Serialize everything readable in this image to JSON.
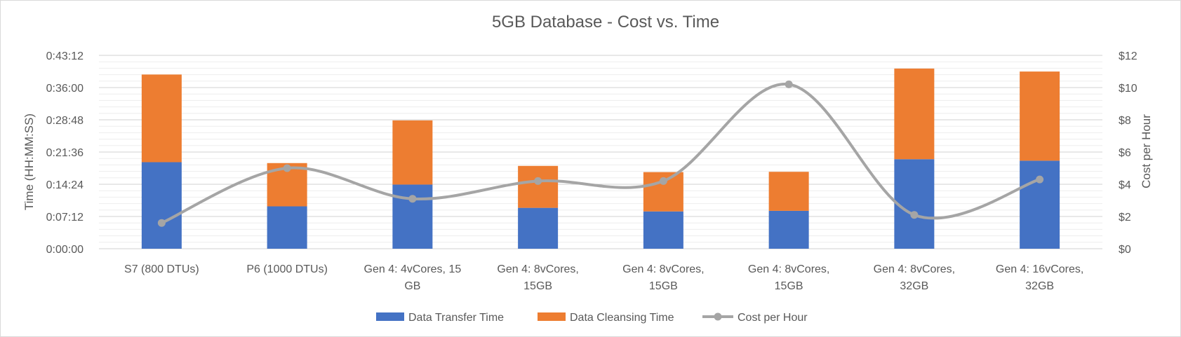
{
  "chart_data": {
    "type": "bar",
    "title": "5GB Database - Cost vs. Time",
    "categories": [
      [
        "S7 (800 DTUs)"
      ],
      [
        "P6 (1000 DTUs)"
      ],
      [
        "Gen 4: 4vCores, 15",
        "GB"
      ],
      [
        "Gen 4: 8vCores,",
        "15GB"
      ],
      [
        "Gen 4: 8vCores,",
        "15GB"
      ],
      [
        "Gen 4: 8vCores,",
        "15GB"
      ],
      [
        "Gen 4: 8vCores,",
        "32GB"
      ],
      [
        "Gen 4: 16vCores,",
        "32GB"
      ]
    ],
    "y_left": {
      "label": "Time (HH:MM:SS)",
      "min_seconds": 0,
      "max_seconds": 2592,
      "ticks": [
        "0:00:00",
        "0:07:12",
        "0:14:24",
        "0:21:36",
        "0:28:48",
        "0:36:00",
        "0:43:12"
      ]
    },
    "y_right": {
      "label": "Cost per Hour",
      "min": 0,
      "max": 12,
      "ticks": [
        "$0",
        "$2",
        "$4",
        "$6",
        "$8",
        "$10",
        "$12"
      ]
    },
    "series": [
      {
        "name": "Data Transfer Time",
        "kind": "stacked-bar",
        "axis": "left",
        "unit": "seconds",
        "color": "#4472c4",
        "values": [
          1160,
          568,
          860,
          548,
          500,
          508,
          1200,
          1180
        ]
      },
      {
        "name": "Data Cleansing Time",
        "kind": "stacked-bar",
        "axis": "left",
        "unit": "seconds",
        "color": "#ed7d31",
        "values": [
          1175,
          580,
          860,
          562,
          527,
          523,
          1215,
          1195
        ]
      },
      {
        "name": "Cost per Hour",
        "kind": "smooth-line",
        "axis": "right",
        "unit": "USD",
        "color": "#a5a5a5",
        "values": [
          1.6,
          5.0,
          3.1,
          4.2,
          4.2,
          10.2,
          2.1,
          4.3
        ]
      }
    ],
    "legend_position": "bottom",
    "grid": true
  }
}
